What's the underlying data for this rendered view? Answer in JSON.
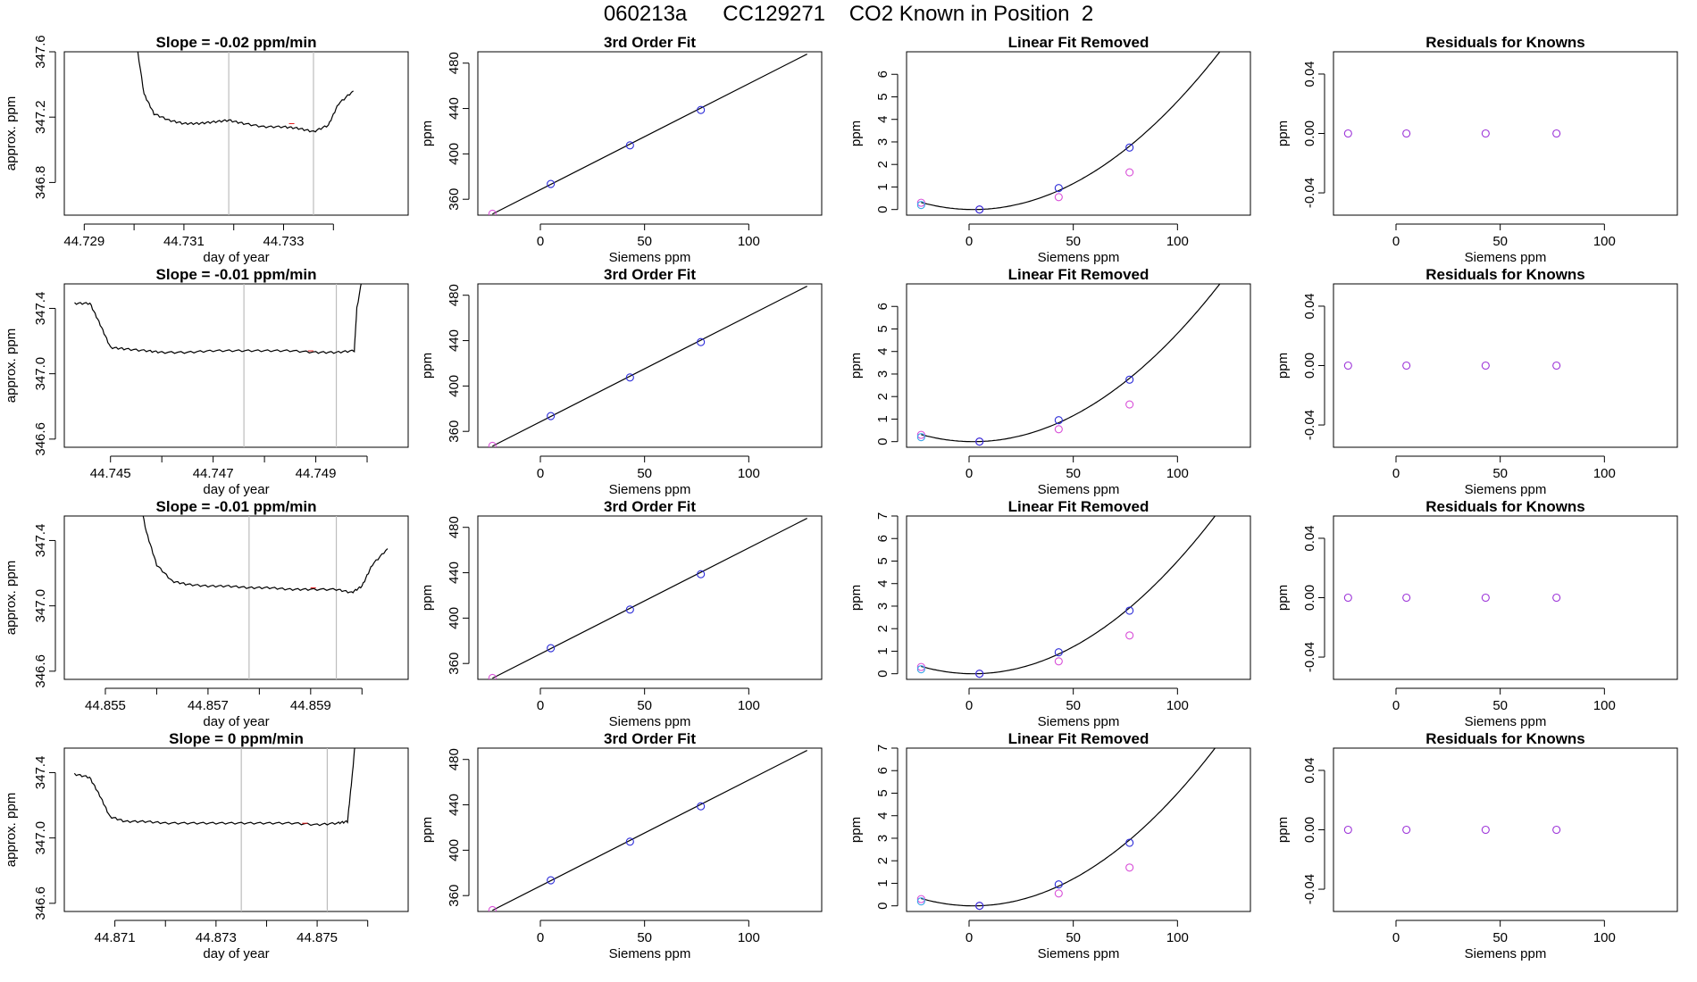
{
  "figure": {
    "title": "060213a      CC129271    CO2 Known in Position  2"
  },
  "chart_data": [
    {
      "type": "line",
      "row": 0,
      "col": 0,
      "title": "Slope =  -0.02  ppm/min",
      "xlabel": "day of year",
      "ylabel": "approx. ppm",
      "xlim": [
        44.7286,
        44.7355
      ],
      "ylim": [
        346.6,
        347.6
      ],
      "xticks": [
        44.729,
        44.73,
        44.731,
        44.732,
        44.733,
        44.734
      ],
      "xticklabels": [
        "44.729",
        "",
        "44.731",
        "",
        "44.733",
        ""
      ],
      "yticks": [
        346.8,
        347.2,
        347.6
      ],
      "yticklabels": [
        "346.8",
        "347.2",
        "347.6"
      ],
      "vlines": [
        44.7319,
        44.7336
      ],
      "series": [
        {
          "x": [
            44.73,
            44.7302,
            44.7304,
            44.7307,
            44.731,
            44.7313,
            44.7316,
            44.7319,
            44.7322,
            44.7326,
            44.733,
            44.7333,
            44.7336,
            44.7339,
            44.7341,
            44.7344
          ],
          "y": [
            347.75,
            347.34,
            347.22,
            347.18,
            347.16,
            347.16,
            347.17,
            347.18,
            347.16,
            347.14,
            347.14,
            347.13,
            347.11,
            347.15,
            347.28,
            347.36
          ]
        }
      ]
    },
    {
      "type": "scatter",
      "row": 0,
      "col": 1,
      "title": "3rd Order Fit",
      "xlabel": "Siemens ppm",
      "ylabel": "ppm",
      "xlim": [
        -30,
        135
      ],
      "ylim": [
        346,
        490
      ],
      "xticks": [
        0,
        50,
        100
      ],
      "yticks": [
        360,
        400,
        440,
        480
      ],
      "points": [
        {
          "x": -23,
          "y": 347.2
        },
        {
          "x": 5,
          "y": 373.5
        },
        {
          "x": 43,
          "y": 407.5
        },
        {
          "x": 77,
          "y": 438.7
        }
      ],
      "curve": {
        "type": "line",
        "x0": -23,
        "y0": 347,
        "x1": 128,
        "y1": 488
      }
    },
    {
      "type": "scatter",
      "row": 0,
      "col": 2,
      "title": "Linear Fit Removed",
      "xlabel": "Siemens ppm",
      "ylabel": "ppm",
      "xlim": [
        -30,
        135
      ],
      "ylim": [
        -0.25,
        7.0
      ],
      "xticks": [
        0,
        50,
        100
      ],
      "yticks": [
        0,
        1,
        2,
        3,
        4,
        5,
        6
      ],
      "points_fit": [
        {
          "x": -23,
          "y": 0.2
        },
        {
          "x": 5,
          "y": 0.0
        },
        {
          "x": 43,
          "y": 0.95
        },
        {
          "x": 77,
          "y": 2.75
        }
      ],
      "points_raw": [
        {
          "x": -23,
          "y": 0.3
        },
        {
          "x": 5,
          "y": 0.0
        },
        {
          "x": 43,
          "y": 0.55
        },
        {
          "x": 77,
          "y": 1.65
        }
      ],
      "curve": {
        "type": "quadratic",
        "a": 0.0005,
        "h": 2,
        "k": 0
      }
    },
    {
      "type": "scatter",
      "row": 0,
      "col": 3,
      "title": "Residuals for Knowns",
      "xlabel": "Siemens ppm",
      "ylabel": "ppm",
      "xlim": [
        -30,
        135
      ],
      "ylim": [
        -0.055,
        0.055
      ],
      "xticks": [
        0,
        50,
        100
      ],
      "yticks": [
        -0.04,
        0.0,
        0.04
      ],
      "yticklabels": [
        "-0.04",
        "0.00",
        "0.04"
      ],
      "points": [
        {
          "x": -23,
          "y": 0
        },
        {
          "x": 5,
          "y": 0
        },
        {
          "x": 43,
          "y": 0
        },
        {
          "x": 77,
          "y": 0
        }
      ]
    },
    {
      "type": "line",
      "row": 1,
      "col": 0,
      "title": "Slope =  -0.01  ppm/min",
      "xlabel": "day of year",
      "ylabel": "approx. ppm",
      "xlim": [
        44.7441,
        44.7508
      ],
      "ylim": [
        346.55,
        347.55
      ],
      "xticks": [
        44.745,
        44.746,
        44.747,
        44.748,
        44.749,
        44.75
      ],
      "xticklabels": [
        "44.745",
        "",
        "44.747",
        "",
        "44.749",
        ""
      ],
      "yticks": [
        346.6,
        347.0,
        347.4
      ],
      "yticklabels": [
        "346.6",
        "347.0",
        "347.4"
      ],
      "vlines": [
        44.7476,
        44.7494
      ],
      "series": [
        {
          "x": [
            44.7443,
            44.7446,
            44.7448,
            44.745,
            44.7453,
            44.7457,
            44.746,
            44.7465,
            44.747,
            44.7475,
            44.748,
            44.7485,
            44.749,
            44.7494,
            44.74975,
            44.7498,
            44.75
          ],
          "y": [
            347.43,
            347.43,
            347.3,
            347.16,
            347.15,
            347.14,
            347.13,
            347.13,
            347.14,
            347.14,
            347.14,
            347.14,
            347.13,
            347.13,
            347.14,
            347.4,
            347.75
          ]
        }
      ]
    },
    {
      "type": "scatter",
      "row": 1,
      "col": 1,
      "title": "3rd Order Fit",
      "xlabel": "Siemens ppm",
      "ylabel": "ppm",
      "xlim": [
        -30,
        135
      ],
      "ylim": [
        346,
        490
      ],
      "xticks": [
        0,
        50,
        100
      ],
      "yticks": [
        360,
        400,
        440,
        480
      ],
      "points": [
        {
          "x": -23,
          "y": 347.2
        },
        {
          "x": 5,
          "y": 373.5
        },
        {
          "x": 43,
          "y": 407.5
        },
        {
          "x": 77,
          "y": 438.7
        }
      ],
      "curve": {
        "type": "line",
        "x0": -23,
        "y0": 347,
        "x1": 128,
        "y1": 488
      }
    },
    {
      "type": "scatter",
      "row": 1,
      "col": 2,
      "title": "Linear Fit Removed",
      "xlabel": "Siemens ppm",
      "ylabel": "ppm",
      "xlim": [
        -30,
        135
      ],
      "ylim": [
        -0.25,
        7.0
      ],
      "xticks": [
        0,
        50,
        100
      ],
      "yticks": [
        0,
        1,
        2,
        3,
        4,
        5,
        6
      ],
      "points_fit": [
        {
          "x": -23,
          "y": 0.2
        },
        {
          "x": 5,
          "y": 0.0
        },
        {
          "x": 43,
          "y": 0.95
        },
        {
          "x": 77,
          "y": 2.75
        }
      ],
      "points_raw": [
        {
          "x": -23,
          "y": 0.3
        },
        {
          "x": 5,
          "y": 0.0
        },
        {
          "x": 43,
          "y": 0.55
        },
        {
          "x": 77,
          "y": 1.65
        }
      ],
      "curve": {
        "type": "quadratic",
        "a": 0.0005,
        "h": 2,
        "k": 0
      }
    },
    {
      "type": "scatter",
      "row": 1,
      "col": 3,
      "title": "Residuals for Knowns",
      "xlabel": "Siemens ppm",
      "ylabel": "ppm",
      "xlim": [
        -30,
        135
      ],
      "ylim": [
        -0.055,
        0.055
      ],
      "xticks": [
        0,
        50,
        100
      ],
      "yticks": [
        -0.04,
        0.0,
        0.04
      ],
      "yticklabels": [
        "-0.04",
        "0.00",
        "0.04"
      ],
      "points": [
        {
          "x": -23,
          "y": 0
        },
        {
          "x": 5,
          "y": 0
        },
        {
          "x": 43,
          "y": 0
        },
        {
          "x": 77,
          "y": 0
        }
      ]
    },
    {
      "type": "line",
      "row": 2,
      "col": 0,
      "title": "Slope =  -0.01  ppm/min",
      "xlabel": "day of year",
      "ylabel": "approx. ppm",
      "xlim": [
        44.8542,
        44.8609
      ],
      "ylim": [
        346.55,
        347.55
      ],
      "xticks": [
        44.855,
        44.856,
        44.857,
        44.858,
        44.859,
        44.86
      ],
      "xticklabels": [
        "44.855",
        "",
        "44.857",
        "",
        "44.859",
        ""
      ],
      "yticks": [
        346.6,
        347.0,
        347.4
      ],
      "yticklabels": [
        "346.6",
        "347.0",
        "347.4"
      ],
      "vlines": [
        44.8578,
        44.8595
      ],
      "series": [
        {
          "x": [
            44.8556,
            44.8558,
            44.856,
            44.8563,
            44.8566,
            44.857,
            44.8574,
            44.8578,
            44.8582,
            44.8586,
            44.859,
            44.8595,
            44.8598,
            44.86,
            44.8602,
            44.8605
          ],
          "y": [
            347.75,
            347.45,
            347.25,
            347.15,
            347.13,
            347.12,
            347.12,
            347.11,
            347.11,
            347.1,
            347.1,
            347.1,
            347.08,
            347.12,
            347.25,
            347.35
          ]
        }
      ]
    },
    {
      "type": "scatter",
      "row": 2,
      "col": 1,
      "title": "3rd Order Fit",
      "xlabel": "Siemens ppm",
      "ylabel": "ppm",
      "xlim": [
        -30,
        135
      ],
      "ylim": [
        346,
        490
      ],
      "xticks": [
        0,
        50,
        100
      ],
      "yticks": [
        360,
        400,
        440,
        480
      ],
      "points": [
        {
          "x": -23,
          "y": 347.2
        },
        {
          "x": 5,
          "y": 373.5
        },
        {
          "x": 43,
          "y": 407.5
        },
        {
          "x": 77,
          "y": 438.7
        }
      ],
      "curve": {
        "type": "line",
        "x0": -23,
        "y0": 347,
        "x1": 128,
        "y1": 488
      }
    },
    {
      "type": "scatter",
      "row": 2,
      "col": 2,
      "title": "Linear Fit Removed",
      "xlabel": "Siemens ppm",
      "ylabel": "ppm",
      "xlim": [
        -30,
        135
      ],
      "ylim": [
        -0.25,
        7.0
      ],
      "xticks": [
        0,
        50,
        100
      ],
      "yticks": [
        0,
        1,
        2,
        3,
        4,
        5,
        6,
        7
      ],
      "points_fit": [
        {
          "x": -23,
          "y": 0.2
        },
        {
          "x": 5,
          "y": 0.0
        },
        {
          "x": 43,
          "y": 0.95
        },
        {
          "x": 77,
          "y": 2.8
        }
      ],
      "points_raw": [
        {
          "x": -23,
          "y": 0.3
        },
        {
          "x": 5,
          "y": 0.0
        },
        {
          "x": 43,
          "y": 0.55
        },
        {
          "x": 77,
          "y": 1.7
        }
      ],
      "curve": {
        "type": "quadratic",
        "a": 0.00052,
        "h": 2,
        "k": 0
      }
    },
    {
      "type": "scatter",
      "row": 2,
      "col": 3,
      "title": "Residuals for Knowns",
      "xlabel": "Siemens ppm",
      "ylabel": "ppm",
      "xlim": [
        -30,
        135
      ],
      "ylim": [
        -0.055,
        0.055
      ],
      "xticks": [
        0,
        50,
        100
      ],
      "yticks": [
        -0.04,
        0.0,
        0.04
      ],
      "yticklabels": [
        "-0.04",
        "0.00",
        "0.04"
      ],
      "points": [
        {
          "x": -23,
          "y": 0
        },
        {
          "x": 5,
          "y": 0
        },
        {
          "x": 43,
          "y": 0
        },
        {
          "x": 77,
          "y": 0
        }
      ]
    },
    {
      "type": "line",
      "row": 3,
      "col": 0,
      "title": "Slope =  0  ppm/min",
      "xlabel": "day of year",
      "ylabel": "approx. ppm",
      "xlim": [
        44.87,
        44.8768
      ],
      "ylim": [
        346.55,
        347.55
      ],
      "xticks": [
        44.871,
        44.872,
        44.873,
        44.874,
        44.875,
        44.876
      ],
      "xticklabels": [
        "44.871",
        "",
        "44.873",
        "",
        "44.875",
        ""
      ],
      "yticks": [
        346.6,
        347.0,
        347.4
      ],
      "yticklabels": [
        "346.6",
        "347.0",
        "347.4"
      ],
      "vlines": [
        44.8735,
        44.8752
      ],
      "series": [
        {
          "x": [
            44.8702,
            44.8705,
            44.8707,
            44.8709,
            44.8712,
            44.8716,
            44.872,
            44.8725,
            44.873,
            44.8735,
            44.874,
            44.8745,
            44.875,
            44.8754,
            44.8756,
            44.8757,
            44.8758
          ],
          "y": [
            347.39,
            347.37,
            347.26,
            347.13,
            347.1,
            347.1,
            347.09,
            347.09,
            347.09,
            347.09,
            347.09,
            347.09,
            347.08,
            347.09,
            347.1,
            347.4,
            347.75
          ]
        }
      ]
    },
    {
      "type": "scatter",
      "row": 3,
      "col": 1,
      "title": "3rd Order Fit",
      "xlabel": "Siemens ppm",
      "ylabel": "ppm",
      "xlim": [
        -30,
        135
      ],
      "ylim": [
        346,
        490
      ],
      "xticks": [
        0,
        50,
        100
      ],
      "yticks": [
        360,
        400,
        440,
        480
      ],
      "points": [
        {
          "x": -23,
          "y": 347.2
        },
        {
          "x": 5,
          "y": 373.5
        },
        {
          "x": 43,
          "y": 407.5
        },
        {
          "x": 77,
          "y": 438.7
        }
      ],
      "curve": {
        "type": "line",
        "x0": -23,
        "y0": 347,
        "x1": 128,
        "y1": 488
      }
    },
    {
      "type": "scatter",
      "row": 3,
      "col": 2,
      "title": "Linear Fit Removed",
      "xlabel": "Siemens ppm",
      "ylabel": "ppm",
      "xlim": [
        -30,
        135
      ],
      "ylim": [
        -0.25,
        7.0
      ],
      "xticks": [
        0,
        50,
        100
      ],
      "yticks": [
        0,
        1,
        2,
        3,
        4,
        5,
        6,
        7
      ],
      "points_fit": [
        {
          "x": -23,
          "y": 0.2
        },
        {
          "x": 5,
          "y": 0.0
        },
        {
          "x": 43,
          "y": 0.95
        },
        {
          "x": 77,
          "y": 2.8
        }
      ],
      "points_raw": [
        {
          "x": -23,
          "y": 0.3
        },
        {
          "x": 5,
          "y": 0.0
        },
        {
          "x": 43,
          "y": 0.55
        },
        {
          "x": 77,
          "y": 1.7
        }
      ],
      "curve": {
        "type": "quadratic",
        "a": 0.00052,
        "h": 2,
        "k": 0
      }
    },
    {
      "type": "scatter",
      "row": 3,
      "col": 3,
      "title": "Residuals for Knowns",
      "xlabel": "Siemens ppm",
      "ylabel": "ppm",
      "xlim": [
        -30,
        135
      ],
      "ylim": [
        -0.055,
        0.055
      ],
      "xticks": [
        0,
        50,
        100
      ],
      "yticks": [
        -0.04,
        0.0,
        0.04
      ],
      "yticklabels": [
        "-0.04",
        "0.00",
        "0.04"
      ],
      "points": [
        {
          "x": -23,
          "y": 0
        },
        {
          "x": 5,
          "y": 0
        },
        {
          "x": 43,
          "y": 0
        },
        {
          "x": 77,
          "y": 0
        }
      ]
    }
  ],
  "colors": {
    "line": "#000000",
    "axis": "#000000",
    "vline": "#bdbdbd",
    "fit_point": "#2b2bd8",
    "raw_point": "#d84fd8",
    "cyan_point": "#3aa6e8",
    "residual_point": "#9b30d8",
    "red_mark": "#e41a1c"
  }
}
